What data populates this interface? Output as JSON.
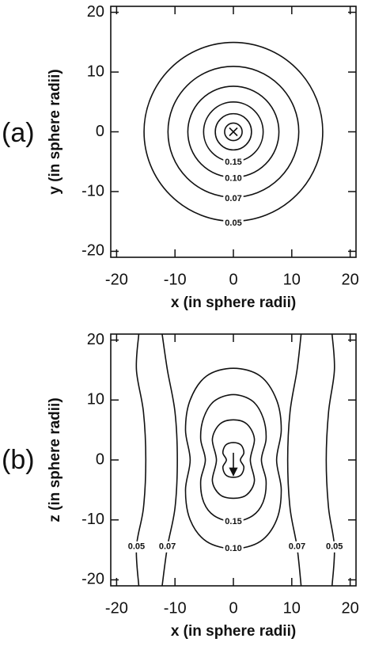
{
  "chart_data": [
    {
      "type": "contour",
      "panel_label": "(a)",
      "x_label": "x (in sphere radii)",
      "y_label": "y (in sphere radii)",
      "xlim": [
        -21,
        21
      ],
      "ylim": [
        -21,
        21
      ],
      "xticks": [
        -20,
        -10,
        0,
        10,
        20
      ],
      "yticks": [
        -20,
        -10,
        0,
        10,
        20
      ],
      "cross": {
        "x": 0,
        "y": 0
      },
      "contours": [
        {
          "level": 0.05,
          "r": 15.3
        },
        {
          "level": 0.07,
          "r": 11.2
        },
        {
          "level": {
            "value": 0.1,
            "label": "0.10"
          },
          "r": 7.8
        },
        {
          "level": 0.15,
          "r": 5.1
        },
        {
          "level": null,
          "r": 3.1
        },
        {
          "level": null,
          "r": 1.5
        }
      ]
    },
    {
      "type": "contour",
      "panel_label": "(b)",
      "x_label": "x (in sphere radii)",
      "y_label": "z (in sphere radii)",
      "xlim": [
        -21,
        21
      ],
      "ylim": [
        -21,
        21
      ],
      "xticks": [
        -20,
        -10,
        0,
        10,
        20
      ],
      "yticks": [
        -20,
        -10,
        0,
        10,
        20
      ],
      "arrow": {
        "x": [
          0,
          0
        ],
        "y": [
          1.2,
          -2.6
        ]
      },
      "contours": [
        {
          "level": 0.05,
          "closed": false,
          "x": [
            -16.2,
            -16.6,
            -15.4,
            -15.0,
            -15.4,
            -16.6,
            -16.2
          ],
          "y": [
            21,
            15,
            8,
            0,
            -8,
            -14.5,
            -21
          ]
        },
        {
          "level": 0.05,
          "closed": false,
          "x": [
            16.9,
            17.3,
            16.3,
            15.9,
            16.3,
            17.3,
            16.9
          ],
          "y": [
            21,
            15,
            8,
            0,
            -8,
            -14.5,
            -21
          ]
        },
        {
          "level": 0.07,
          "closed": false,
          "x": [
            -12.2,
            -11.3,
            -10.0,
            -9.6,
            -10.0,
            -11.3,
            -12.2
          ],
          "y": [
            21,
            15,
            8,
            0,
            -8,
            -14.5,
            -21
          ]
        },
        {
          "level": 0.07,
          "closed": false,
          "x": [
            11.6,
            10.9,
            9.7,
            9.3,
            9.7,
            10.9,
            11.6
          ],
          "y": [
            21,
            15,
            8,
            0,
            -8,
            -14.5,
            -21
          ]
        },
        {
          "level": {
            "value": 0.1,
            "label": "0.10"
          },
          "closed": true,
          "x": [
            0,
            4.6,
            7.4,
            8.2,
            7.4,
            8.2,
            7.4,
            4.6,
            0,
            -4.6,
            -7.4,
            -8.2,
            -7.4,
            -8.2,
            -7.4,
            -4.6
          ],
          "y": [
            15.3,
            14.0,
            10.0,
            5.0,
            0,
            -5.0,
            -10.0,
            -13.6,
            -14.8,
            -13.6,
            -10.0,
            -5.0,
            0,
            5.0,
            10.0,
            14.0
          ]
        },
        {
          "level": 0.15,
          "closed": true,
          "x": [
            0,
            3.3,
            5.1,
            5.6,
            4.8,
            5.6,
            5.1,
            3.3,
            0,
            -3.3,
            -5.1,
            -5.6,
            -4.8,
            -5.6,
            -5.1,
            -3.3
          ],
          "y": [
            10.9,
            9.8,
            7.0,
            3.5,
            0,
            -3.5,
            -7.0,
            -9.3,
            -10.3,
            -9.3,
            -7.0,
            -3.5,
            0,
            3.5,
            7.0,
            9.8
          ]
        },
        {
          "level": null,
          "closed": true,
          "x": [
            0,
            2.3,
            3.6,
            2.9,
            3.6,
            2.3,
            0,
            -2.3,
            -3.6,
            -2.9,
            -3.6,
            -2.3
          ],
          "y": [
            6.7,
            6.0,
            3.5,
            0,
            -3.5,
            -5.8,
            -6.4,
            -5.8,
            -3.5,
            0,
            3.5,
            6.0
          ]
        },
        {
          "level": null,
          "closed": true,
          "x": [
            0,
            1.3,
            1.8,
            1.2,
            1.8,
            1.3,
            0,
            -1.3,
            -1.8,
            -1.2,
            -1.8,
            -1.3
          ],
          "y": [
            2.9,
            2.5,
            1.2,
            0,
            -1.2,
            -2.5,
            -2.9,
            -2.5,
            -1.2,
            0,
            1.2,
            2.5
          ]
        }
      ]
    }
  ]
}
